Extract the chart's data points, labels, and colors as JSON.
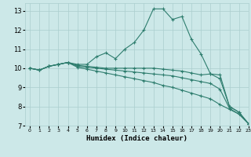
{
  "xlabel": "Humidex (Indice chaleur)",
  "xlim": [
    -0.5,
    23
  ],
  "ylim": [
    7,
    13.4
  ],
  "yticks": [
    7,
    8,
    9,
    10,
    11,
    12,
    13
  ],
  "xticks": [
    0,
    1,
    2,
    3,
    4,
    5,
    6,
    7,
    8,
    9,
    10,
    11,
    12,
    13,
    14,
    15,
    16,
    17,
    18,
    19,
    20,
    21,
    22,
    23
  ],
  "background_color": "#cce8e8",
  "grid_color": "#aacece",
  "line_color": "#2e7d6e",
  "lines": [
    [
      10.0,
      9.9,
      10.1,
      10.2,
      10.3,
      10.2,
      10.2,
      10.6,
      10.8,
      10.5,
      11.0,
      11.35,
      12.0,
      13.1,
      13.1,
      12.55,
      12.7,
      11.5,
      10.75,
      9.7,
      9.45,
      8.0,
      7.7,
      7.1
    ],
    [
      10.0,
      9.9,
      10.1,
      10.2,
      10.3,
      10.15,
      10.1,
      10.05,
      10.0,
      10.0,
      10.0,
      10.0,
      10.0,
      10.0,
      9.95,
      9.9,
      9.85,
      9.75,
      9.65,
      9.7,
      9.65,
      8.0,
      7.7,
      7.1
    ],
    [
      10.0,
      9.9,
      10.1,
      10.2,
      10.3,
      10.1,
      10.05,
      10.0,
      9.95,
      9.9,
      9.85,
      9.8,
      9.75,
      9.7,
      9.65,
      9.6,
      9.5,
      9.4,
      9.3,
      9.2,
      8.9,
      7.9,
      7.6,
      7.1
    ],
    [
      10.0,
      9.9,
      10.1,
      10.2,
      10.3,
      10.05,
      9.95,
      9.85,
      9.75,
      9.65,
      9.55,
      9.45,
      9.35,
      9.25,
      9.1,
      9.0,
      8.85,
      8.7,
      8.55,
      8.4,
      8.1,
      7.85,
      7.6,
      7.1
    ]
  ]
}
